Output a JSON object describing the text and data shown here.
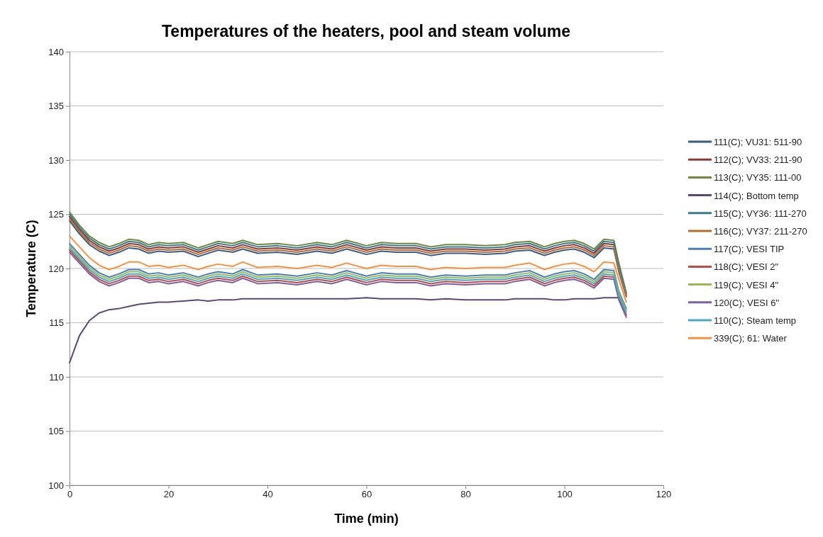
{
  "chart_data": {
    "type": "line",
    "title": "Temperatures of the heaters, pool and steam volume",
    "xlabel": "Time (min)",
    "ylabel": "Temperature (C)",
    "x": [
      0,
      2,
      4,
      6,
      8,
      10,
      12,
      14,
      16,
      18,
      20,
      23,
      26,
      28,
      30,
      33,
      35,
      38,
      42,
      46,
      50,
      53,
      56,
      60,
      63,
      66,
      70,
      73,
      76,
      80,
      84,
      88,
      90,
      93,
      96,
      98,
      100,
      102,
      104,
      106,
      108,
      110,
      111,
      112.5
    ],
    "xlim": [
      0,
      120
    ],
    "xticks": [
      0,
      20,
      40,
      60,
      80,
      100,
      120
    ],
    "ylim": [
      100,
      140
    ],
    "yticks": [
      100,
      105,
      110,
      115,
      120,
      125,
      130,
      135,
      140
    ],
    "grid": "y",
    "legend": "right",
    "series": [
      {
        "name": "111(C); VU31: 511-90",
        "color": "#385d8a",
        "values": [
          124.4,
          123.2,
          122.2,
          121.6,
          121.2,
          121.5,
          121.9,
          121.8,
          121.4,
          121.6,
          121.5,
          121.6,
          121.1,
          121.4,
          121.7,
          121.5,
          121.8,
          121.4,
          121.5,
          121.3,
          121.6,
          121.4,
          121.8,
          121.3,
          121.6,
          121.5,
          121.5,
          121.2,
          121.4,
          121.4,
          121.3,
          121.4,
          121.6,
          121.7,
          121.2,
          121.5,
          121.7,
          121.8,
          121.5,
          121.0,
          121.9,
          121.8,
          119.7,
          117.4
        ]
      },
      {
        "name": "112(C); VV33: 211-90",
        "color": "#8c3836",
        "values": [
          124.8,
          123.6,
          122.6,
          122.0,
          121.6,
          121.9,
          122.3,
          122.2,
          121.8,
          122.0,
          121.9,
          122.0,
          121.5,
          121.8,
          122.1,
          121.9,
          122.2,
          121.8,
          121.9,
          121.7,
          122.0,
          121.8,
          122.2,
          121.7,
          122.0,
          121.9,
          121.9,
          121.6,
          121.8,
          121.8,
          121.7,
          121.8,
          122.0,
          122.1,
          121.6,
          121.9,
          122.1,
          122.2,
          121.9,
          121.4,
          122.3,
          122.2,
          120.1,
          117.6
        ]
      },
      {
        "name": "113(C); VY35: 111-00",
        "color": "#71893f",
        "values": [
          125.2,
          124.0,
          123.0,
          122.4,
          122.0,
          122.3,
          122.7,
          122.6,
          122.2,
          122.4,
          122.3,
          122.4,
          121.9,
          122.2,
          122.5,
          122.3,
          122.6,
          122.2,
          122.3,
          122.1,
          122.4,
          122.2,
          122.6,
          122.1,
          122.4,
          122.3,
          122.3,
          122.0,
          122.2,
          122.2,
          122.1,
          122.2,
          122.4,
          122.5,
          122.0,
          122.3,
          122.5,
          122.6,
          122.3,
          121.8,
          122.7,
          122.6,
          120.5,
          117.8
        ]
      },
      {
        "name": "114(C); Bottom temp",
        "color": "#5c4776",
        "values": [
          111.3,
          113.8,
          115.2,
          115.9,
          116.2,
          116.3,
          116.5,
          116.7,
          116.8,
          116.9,
          116.9,
          117.0,
          117.1,
          117.0,
          117.1,
          117.1,
          117.2,
          117.2,
          117.2,
          117.2,
          117.2,
          117.2,
          117.2,
          117.3,
          117.2,
          117.2,
          117.2,
          117.1,
          117.2,
          117.1,
          117.1,
          117.1,
          117.2,
          117.2,
          117.2,
          117.1,
          117.1,
          117.2,
          117.2,
          117.2,
          117.3,
          117.3,
          117.3,
          null
        ]
      },
      {
        "name": "115(C); VY36: 111-270",
        "color": "#357d91",
        "values": [
          125.0,
          123.8,
          122.8,
          122.2,
          121.8,
          122.1,
          122.5,
          122.4,
          122.0,
          122.2,
          122.1,
          122.2,
          121.7,
          122.0,
          122.3,
          122.1,
          122.4,
          122.0,
          122.1,
          121.9,
          122.2,
          122.0,
          122.4,
          121.9,
          122.2,
          122.1,
          122.1,
          121.8,
          122.0,
          122.0,
          121.9,
          122.0,
          122.2,
          122.3,
          121.8,
          122.1,
          122.3,
          122.4,
          122.1,
          121.6,
          122.5,
          122.4,
          120.3,
          117.7
        ]
      },
      {
        "name": "116(C); VY37: 211-270",
        "color": "#b66d31",
        "values": [
          124.6,
          123.4,
          122.4,
          121.8,
          121.4,
          121.7,
          122.1,
          122.0,
          121.6,
          121.8,
          121.7,
          121.8,
          121.3,
          121.6,
          121.9,
          121.7,
          122.0,
          121.6,
          121.7,
          121.5,
          121.8,
          121.6,
          122.0,
          121.5,
          121.8,
          121.7,
          121.7,
          121.4,
          121.6,
          121.6,
          121.5,
          121.6,
          121.8,
          121.9,
          121.4,
          121.7,
          121.9,
          122.0,
          121.7,
          121.2,
          122.1,
          122.0,
          119.9,
          117.5
        ]
      },
      {
        "name": "117(C); VESI TIP",
        "color": "#4a7ebb",
        "values": [
          122.3,
          121.3,
          120.3,
          119.6,
          119.2,
          119.5,
          119.9,
          119.9,
          119.5,
          119.6,
          119.4,
          119.6,
          119.2,
          119.5,
          119.7,
          119.5,
          119.9,
          119.4,
          119.5,
          119.3,
          119.6,
          119.4,
          119.8,
          119.3,
          119.6,
          119.5,
          119.5,
          119.2,
          119.4,
          119.3,
          119.4,
          119.4,
          119.6,
          119.8,
          119.2,
          119.5,
          119.7,
          119.8,
          119.5,
          119.0,
          119.9,
          119.8,
          117.9,
          116.3
        ]
      },
      {
        "name": "118(C); VESI 2\"",
        "color": "#be4b48",
        "values": [
          121.7,
          120.7,
          119.7,
          119.0,
          118.6,
          118.9,
          119.3,
          119.3,
          118.9,
          119.0,
          118.8,
          119.0,
          118.6,
          118.9,
          119.1,
          118.9,
          119.3,
          118.8,
          118.9,
          118.7,
          119.0,
          118.8,
          119.2,
          118.7,
          119.0,
          118.9,
          118.9,
          118.6,
          118.8,
          118.7,
          118.8,
          118.8,
          119.0,
          119.2,
          118.6,
          118.9,
          119.1,
          119.2,
          118.9,
          118.4,
          119.3,
          119.2,
          117.3,
          115.7
        ]
      },
      {
        "name": "119(C); VESI 4\"",
        "color": "#98b954",
        "values": [
          122.1,
          121.1,
          120.1,
          119.4,
          119.0,
          119.3,
          119.7,
          119.7,
          119.3,
          119.4,
          119.2,
          119.4,
          119.0,
          119.3,
          119.5,
          119.3,
          119.7,
          119.2,
          119.3,
          119.1,
          119.4,
          119.2,
          119.6,
          119.1,
          119.4,
          119.3,
          119.3,
          119.0,
          119.2,
          119.1,
          119.2,
          119.2,
          119.4,
          119.6,
          119.0,
          119.3,
          119.5,
          119.6,
          119.3,
          118.8,
          119.7,
          119.6,
          117.7,
          116.1
        ]
      },
      {
        "name": "120(C); VESI 6\"",
        "color": "#7d60a0",
        "values": [
          121.5,
          120.5,
          119.5,
          118.8,
          118.4,
          118.7,
          119.1,
          119.1,
          118.7,
          118.8,
          118.6,
          118.8,
          118.4,
          118.7,
          118.9,
          118.7,
          119.1,
          118.6,
          118.7,
          118.5,
          118.8,
          118.6,
          119.0,
          118.5,
          118.8,
          118.7,
          118.7,
          118.4,
          118.6,
          118.5,
          118.6,
          118.6,
          118.8,
          119.0,
          118.4,
          118.7,
          118.9,
          119.0,
          118.7,
          118.2,
          119.1,
          119.0,
          117.1,
          115.5
        ]
      },
      {
        "name": "110(C); Steam temp",
        "color": "#46aac5",
        "values": [
          121.9,
          120.9,
          119.9,
          119.2,
          118.8,
          119.1,
          119.5,
          119.5,
          119.1,
          119.2,
          119.0,
          119.2,
          118.8,
          119.1,
          119.3,
          119.1,
          119.5,
          119.0,
          119.1,
          118.9,
          119.2,
          119.0,
          119.4,
          118.9,
          119.2,
          119.1,
          119.1,
          118.8,
          119.0,
          118.9,
          119.0,
          119.0,
          119.2,
          119.4,
          118.8,
          119.1,
          119.3,
          119.4,
          119.1,
          118.6,
          119.5,
          119.4,
          117.5,
          115.9
        ]
      },
      {
        "name": "339(C); 61: Water",
        "color": "#f69240",
        "values": [
          123.0,
          122.0,
          121.0,
          120.3,
          119.9,
          120.2,
          120.6,
          120.6,
          120.2,
          120.3,
          120.1,
          120.3,
          119.9,
          120.2,
          120.4,
          120.2,
          120.6,
          120.1,
          120.2,
          120.0,
          120.3,
          120.1,
          120.5,
          120.0,
          120.3,
          120.2,
          120.2,
          119.9,
          120.1,
          120.0,
          120.1,
          120.1,
          120.3,
          120.5,
          119.9,
          120.2,
          120.4,
          120.5,
          120.2,
          119.7,
          120.6,
          120.5,
          119.0,
          116.9
        ]
      }
    ]
  }
}
